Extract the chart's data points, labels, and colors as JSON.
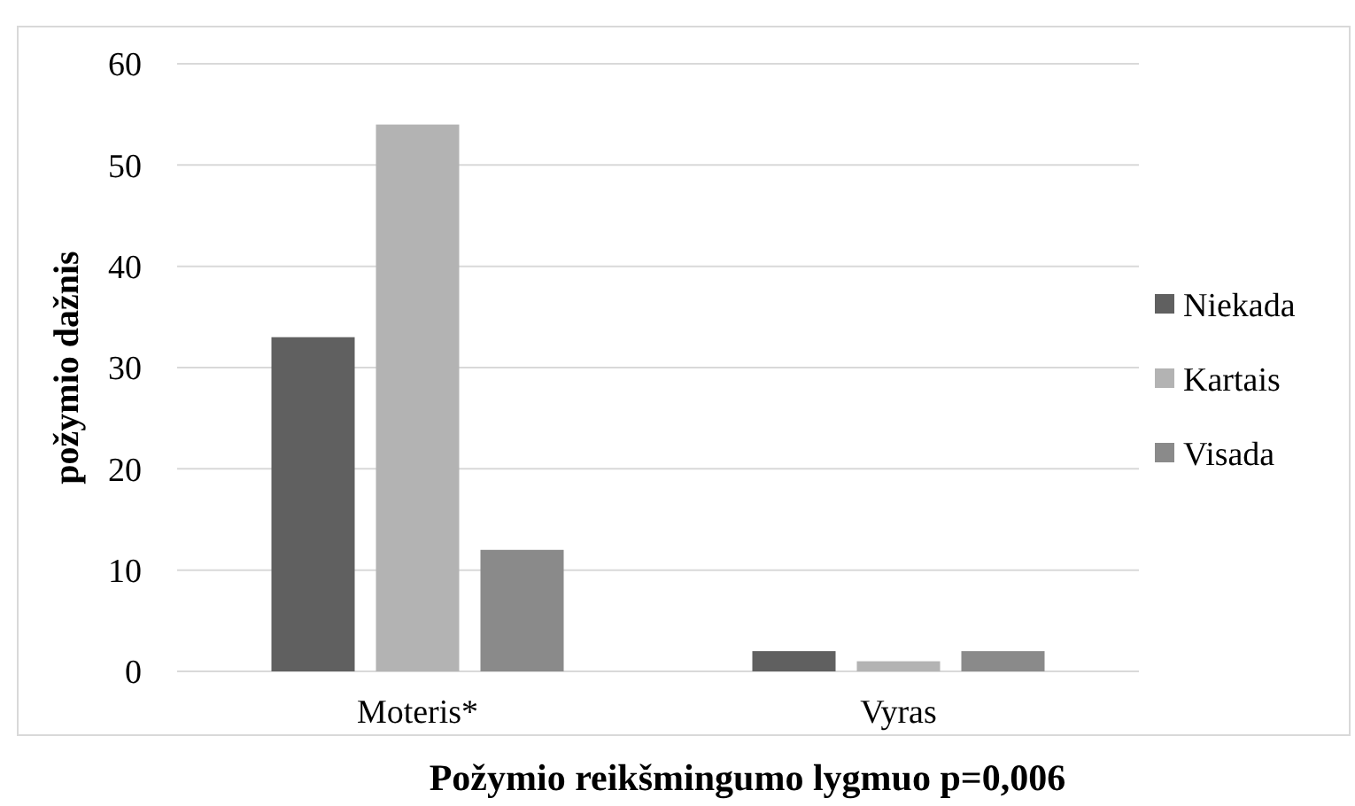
{
  "chart_data": {
    "type": "bar",
    "xlabel": "Požymio reikšmingumo lygmuo p=0,006",
    "ylabel": "požymio dažnis",
    "categories": [
      "Moteris*",
      "Vyras"
    ],
    "series": [
      {
        "name": "Niekada",
        "color": "#606060",
        "values": [
          33,
          2
        ]
      },
      {
        "name": "Kartais",
        "color": "#b3b3b3",
        "values": [
          54,
          1
        ]
      },
      {
        "name": "Visada",
        "color": "#8a8a8a",
        "values": [
          12,
          2
        ]
      }
    ],
    "ylim": [
      0,
      60
    ],
    "yticks": [
      0,
      10,
      20,
      30,
      40,
      50,
      60
    ],
    "grid": "y",
    "legend": "right"
  }
}
